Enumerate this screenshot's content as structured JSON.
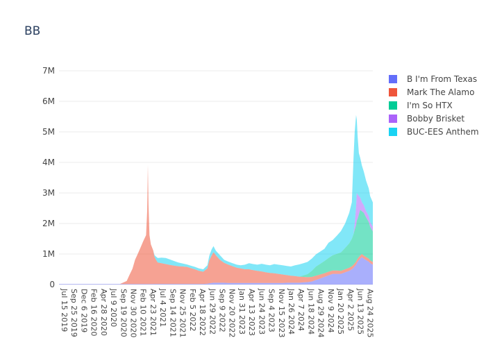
{
  "chart_data": {
    "type": "area",
    "stacked": true,
    "title": "BB",
    "xlabel": "",
    "ylabel": "",
    "ylim": [
      0,
      7000000
    ],
    "y_ticks": [
      {
        "value": 0,
        "label": "0"
      },
      {
        "value": 1000000,
        "label": "1M"
      },
      {
        "value": 2000000,
        "label": "2M"
      },
      {
        "value": 3000000,
        "label": "3M"
      },
      {
        "value": 4000000,
        "label": "4M"
      },
      {
        "value": 5000000,
        "label": "5M"
      },
      {
        "value": 6000000,
        "label": "6M"
      },
      {
        "value": 7000000,
        "label": "7M"
      }
    ],
    "x_range": [
      "2019-07-15",
      "2025-10-20"
    ],
    "x_ticks": [
      "Jul 15 2019",
      "Sep 25 2019",
      "Dec 6 2019",
      "Feb 16 2020",
      "Apr 28 2020",
      "Jul 9 2020",
      "Sep 19 2020",
      "Nov 30 2020",
      "Feb 10 2021",
      "Apr 23 2021",
      "Jul 4 2021",
      "Sep 14 2021",
      "Nov 25 2021",
      "Feb 5 2022",
      "Apr 18 2022",
      "Jun 29 2022",
      "Sep 9 2022",
      "Nov 20 2022",
      "Jan 31 2023",
      "Apr 13 2023",
      "Jun 24 2023",
      "Sep 4 2023",
      "Nov 15 2023",
      "Jan 26 2024",
      "Apr 7 2024",
      "Jun 18 2024",
      "Aug 29 2024",
      "Nov 9 2024",
      "Jan 20 2025",
      "Apr 2 2025",
      "Jun 13 2025",
      "Aug 24 2025"
    ],
    "x_tick_dates": [
      "2019-07-15",
      "2019-09-25",
      "2019-12-06",
      "2020-02-16",
      "2020-04-28",
      "2020-07-09",
      "2020-09-19",
      "2020-11-30",
      "2021-02-10",
      "2021-04-23",
      "2021-07-04",
      "2021-09-14",
      "2021-11-25",
      "2022-02-05",
      "2022-04-18",
      "2022-06-29",
      "2022-09-09",
      "2022-11-20",
      "2023-01-31",
      "2023-04-13",
      "2023-06-24",
      "2023-09-04",
      "2023-11-15",
      "2024-01-26",
      "2024-04-07",
      "2024-06-18",
      "2024-08-29",
      "2024-11-09",
      "2025-01-20",
      "2025-04-02",
      "2025-06-13",
      "2025-08-24"
    ],
    "legend_position": "top-right",
    "x": [
      "2019-07-15",
      "2019-10-01",
      "2020-01-01",
      "2020-04-01",
      "2020-07-01",
      "2020-10-01",
      "2020-11-20",
      "2020-12-10",
      "2021-01-01",
      "2021-01-20",
      "2021-02-10",
      "2021-03-01",
      "2021-03-20",
      "2021-04-10",
      "2021-04-18",
      "2021-04-23",
      "2021-04-28",
      "2021-05-05",
      "2021-05-15",
      "2021-06-01",
      "2021-06-10",
      "2021-06-20",
      "2021-07-04",
      "2021-08-01",
      "2021-09-01",
      "2021-10-01",
      "2021-11-01",
      "2021-12-01",
      "2022-01-01",
      "2022-02-01",
      "2022-03-01",
      "2022-04-01",
      "2022-05-01",
      "2022-06-01",
      "2022-07-01",
      "2022-07-15",
      "2022-08-01",
      "2022-08-15",
      "2022-09-01",
      "2022-10-01",
      "2022-11-01",
      "2022-12-01",
      "2023-01-01",
      "2023-02-01",
      "2023-03-01",
      "2023-04-01",
      "2023-05-01",
      "2023-06-01",
      "2023-07-01",
      "2023-08-01",
      "2023-09-01",
      "2023-10-01",
      "2023-11-01",
      "2023-12-01",
      "2024-01-01",
      "2024-02-01",
      "2024-03-01",
      "2024-04-01",
      "2024-05-01",
      "2024-06-01",
      "2024-07-01",
      "2024-08-01",
      "2024-09-01",
      "2024-10-01",
      "2024-11-01",
      "2024-12-01",
      "2025-01-01",
      "2025-02-01",
      "2025-03-01",
      "2025-04-01",
      "2025-05-01",
      "2025-05-20",
      "2025-06-01",
      "2025-06-10",
      "2025-06-20",
      "2025-06-25",
      "2025-07-01",
      "2025-07-10",
      "2025-07-20",
      "2025-08-01",
      "2025-08-15",
      "2025-09-01",
      "2025-09-20",
      "2025-10-01",
      "2025-10-20"
    ],
    "series": [
      {
        "name": "B I'm From Texas",
        "color": "#636efa",
        "values": [
          15000,
          15000,
          15000,
          15000,
          15000,
          15000,
          15000,
          15000,
          15000,
          15000,
          15000,
          15000,
          15000,
          15000,
          15000,
          15000,
          15000,
          15000,
          15000,
          15000,
          20000,
          20000,
          20000,
          20000,
          20000,
          20000,
          20000,
          20000,
          20000,
          20000,
          20000,
          20000,
          20000,
          20000,
          30000,
          40000,
          50000,
          60000,
          60000,
          60000,
          60000,
          50000,
          50000,
          50000,
          50000,
          50000,
          50000,
          50000,
          50000,
          50000,
          50000,
          50000,
          50000,
          50000,
          50000,
          60000,
          60000,
          60000,
          60000,
          70000,
          80000,
          100000,
          150000,
          200000,
          250000,
          300000,
          350000,
          350000,
          350000,
          400000,
          450000,
          500000,
          550000,
          600000,
          650000,
          700000,
          750000,
          800000,
          850000,
          900000,
          850000,
          800000,
          750000,
          700000,
          650000
        ]
      },
      {
        "name": "Mark The Alamo",
        "color": "#ef553b",
        "values": [
          0,
          0,
          0,
          0,
          0,
          0,
          100000,
          300000,
          500000,
          800000,
          1000000,
          1200000,
          1400000,
          1600000,
          2400000,
          3900000,
          2600000,
          1600000,
          1300000,
          1100000,
          900000,
          800000,
          700000,
          680000,
          650000,
          620000,
          600000,
          580000,
          570000,
          560000,
          520000,
          480000,
          430000,
          400000,
          500000,
          750000,
          900000,
          1000000,
          900000,
          750000,
          650000,
          600000,
          550000,
          500000,
          480000,
          450000,
          450000,
          420000,
          400000,
          380000,
          350000,
          330000,
          320000,
          300000,
          280000,
          250000,
          230000,
          220000,
          200000,
          180000,
          160000,
          150000,
          140000,
          130000,
          120000,
          120000,
          110000,
          110000,
          100000,
          100000,
          100000,
          100000,
          100000,
          100000,
          100000,
          100000,
          100000,
          100000,
          100000,
          100000,
          100000,
          100000,
          100000,
          90000,
          90000
        ]
      },
      {
        "name": "I'm So HTX",
        "color": "#00cc96",
        "values": [
          0,
          0,
          0,
          0,
          0,
          0,
          0,
          0,
          0,
          0,
          0,
          0,
          0,
          0,
          0,
          0,
          0,
          0,
          0,
          0,
          0,
          0,
          0,
          0,
          0,
          0,
          0,
          0,
          0,
          0,
          0,
          0,
          0,
          0,
          0,
          0,
          0,
          0,
          0,
          0,
          0,
          0,
          0,
          0,
          0,
          0,
          0,
          0,
          0,
          0,
          0,
          0,
          0,
          0,
          0,
          0,
          0,
          0,
          0,
          50000,
          100000,
          200000,
          300000,
          350000,
          400000,
          450000,
          500000,
          550000,
          600000,
          700000,
          800000,
          900000,
          1000000,
          1100000,
          1200000,
          1300000,
          1300000,
          1400000,
          1500000,
          1400000,
          1400000,
          1300000,
          1200000,
          1100000,
          1000000
        ]
      },
      {
        "name": "Bobby Brisket",
        "color": "#ab63fa",
        "values": [
          0,
          0,
          0,
          0,
          0,
          0,
          0,
          0,
          0,
          0,
          0,
          0,
          0,
          0,
          0,
          0,
          0,
          0,
          0,
          0,
          0,
          0,
          0,
          0,
          0,
          0,
          0,
          0,
          0,
          0,
          0,
          0,
          0,
          0,
          0,
          0,
          0,
          0,
          0,
          0,
          0,
          0,
          0,
          0,
          0,
          0,
          0,
          0,
          0,
          0,
          0,
          0,
          0,
          0,
          0,
          0,
          0,
          0,
          0,
          0,
          0,
          0,
          0,
          0,
          0,
          0,
          0,
          0,
          0,
          0,
          0,
          0,
          0,
          200000,
          600000,
          900000,
          800000,
          600000,
          400000,
          300000,
          250000,
          200000,
          200000,
          150000,
          150000
        ]
      },
      {
        "name": "BUC-EES Anthem",
        "color": "#19d3f3",
        "values": [
          0,
          0,
          0,
          0,
          0,
          0,
          0,
          0,
          0,
          0,
          0,
          0,
          0,
          0,
          0,
          0,
          0,
          0,
          0,
          0,
          50000,
          100000,
          150000,
          180000,
          200000,
          180000,
          150000,
          120000,
          100000,
          80000,
          80000,
          80000,
          80000,
          80000,
          100000,
          150000,
          200000,
          200000,
          150000,
          150000,
          100000,
          100000,
          100000,
          100000,
          100000,
          150000,
          200000,
          200000,
          200000,
          250000,
          250000,
          250000,
          300000,
          300000,
          300000,
          300000,
          300000,
          350000,
          400000,
          400000,
          400000,
          400000,
          400000,
          400000,
          400000,
          500000,
          500000,
          600000,
          700000,
          800000,
          1000000,
          1200000,
          2500000,
          3000000,
          3000000,
          2400000,
          1900000,
          1400000,
          1300000,
          1200000,
          1100000,
          1000000,
          900000,
          850000,
          800000
        ]
      }
    ]
  }
}
